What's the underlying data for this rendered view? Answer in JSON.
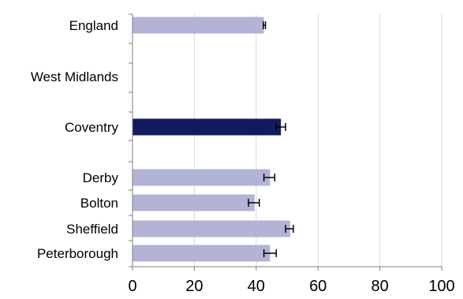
{
  "chart_data": {
    "type": "bar",
    "orientation": "horizontal",
    "categories": [
      "England",
      "West Midlands",
      "Coventry",
      "Derby",
      "Bolton",
      "Sheffield",
      "Peterborough"
    ],
    "values": [
      42.5,
      0,
      48.0,
      44.5,
      39.5,
      51.0,
      44.5
    ],
    "error_bars": [
      {
        "low": 42.3,
        "high": 43.0
      },
      {
        "low": 0,
        "high": 0
      },
      {
        "low": 46.5,
        "high": 49.5
      },
      {
        "low": 42.5,
        "high": 46.0
      },
      {
        "low": 37.5,
        "high": 41.0
      },
      {
        "low": 49.5,
        "high": 52.0
      },
      {
        "low": 42.5,
        "high": 46.5
      }
    ],
    "highlight_category": "Coventry",
    "xlim": [
      0,
      100
    ],
    "x_ticks": [
      "0",
      "20",
      "40",
      "60",
      "80",
      "100"
    ],
    "grid": "vertical",
    "colors": {
      "bar": "#b3b3d6",
      "highlight": "#131a5e",
      "grid": "#d9d9d9",
      "axis": "#7f7f7f",
      "error": "#000000"
    },
    "title": "",
    "xlabel": "",
    "ylabel": ""
  }
}
